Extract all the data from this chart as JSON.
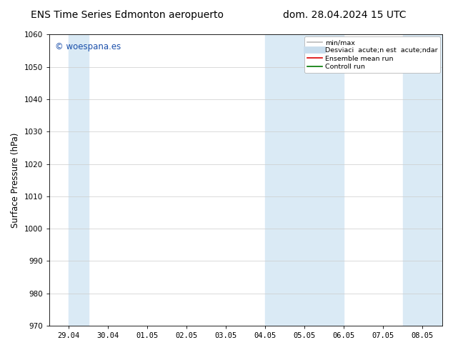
{
  "title_left": "ENS Time Series Edmonton aeropuerto",
  "title_right": "dom. 28.04.2024 15 UTC",
  "ylabel": "Surface Pressure (hPa)",
  "ylim": [
    970,
    1060
  ],
  "yticks": [
    970,
    980,
    990,
    1000,
    1010,
    1020,
    1030,
    1040,
    1050,
    1060
  ],
  "xtick_labels": [
    "29.04",
    "30.04",
    "01.05",
    "02.05",
    "03.05",
    "04.05",
    "05.05",
    "06.05",
    "07.05",
    "08.05"
  ],
  "shaded_regions": [
    {
      "xmin": 0,
      "xmax": 0.5,
      "color": "#daeaf5"
    },
    {
      "xmin": 5.0,
      "xmax": 7.0,
      "color": "#daeaf5"
    },
    {
      "xmin": 8.5,
      "xmax": 9.5,
      "color": "#daeaf5"
    }
  ],
  "watermark_text": "© woespana.es",
  "watermark_color": "#1a4faa",
  "legend_entries": [
    {
      "label": "min/max",
      "color": "#bbbbbb",
      "lw": 1.2,
      "type": "line"
    },
    {
      "label": "Desviaci  acute;n est  acute;ndar",
      "color": "#c8dded",
      "lw": 7,
      "type": "line"
    },
    {
      "label": "Ensemble mean run",
      "color": "#dd0000",
      "lw": 1.2,
      "type": "line"
    },
    {
      "label": "Controll run",
      "color": "#007700",
      "lw": 1.2,
      "type": "line"
    }
  ],
  "bg_color": "#ffffff",
  "plot_bg_color": "#ffffff",
  "grid_color": "#cccccc",
  "title_fontsize": 10,
  "tick_fontsize": 7.5,
  "label_fontsize": 8.5
}
